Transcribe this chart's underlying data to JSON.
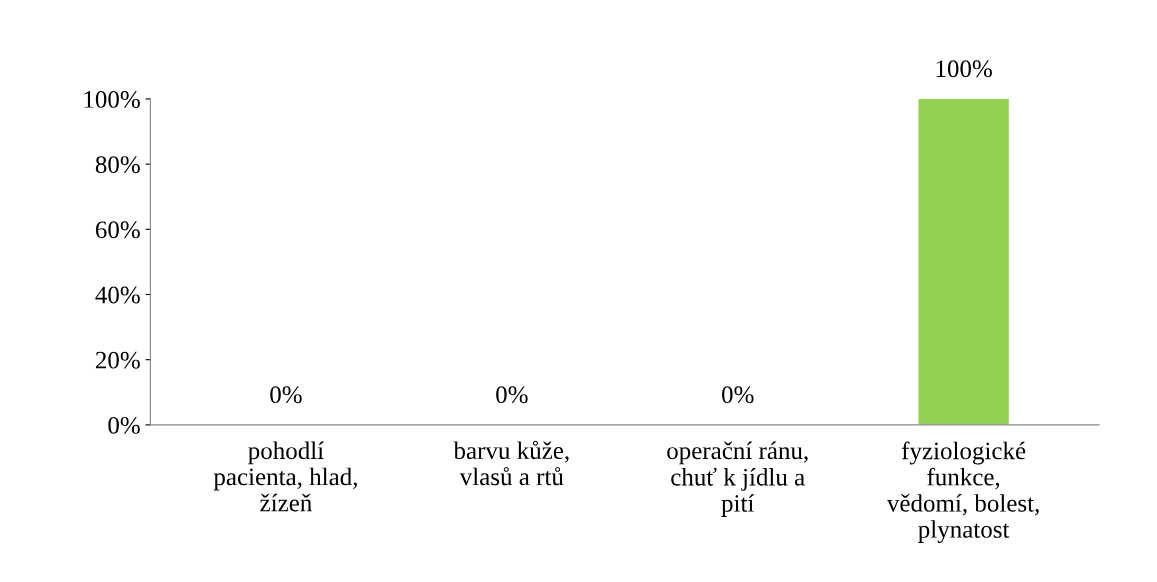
{
  "chart_data": {
    "type": "bar",
    "categories": [
      "pohodlí\npacienta, hlad,\nžízeň",
      "barvu kůže,\nvlasů a rtů",
      "operační ránu,\nchuť k jídlu a\npití",
      "fyziologické\nfunkce,\nvědomí, bolest,\nplynatost"
    ],
    "values": [
      0,
      0,
      0,
      100
    ],
    "colors": [
      "#3a6496",
      "#3a6496",
      "#3a6496",
      "#92d050"
    ],
    "value_labels": [
      "0%",
      "0%",
      "0%",
      "100%"
    ],
    "ylim": [
      0,
      100
    ],
    "yticks": [
      {
        "value": 0,
        "label": "0%"
      },
      {
        "value": 20,
        "label": "20%"
      },
      {
        "value": 40,
        "label": "40%"
      },
      {
        "value": 60,
        "label": "60%"
      },
      {
        "value": 80,
        "label": "80%"
      },
      {
        "value": 100,
        "label": "100%"
      }
    ],
    "grid": false
  }
}
